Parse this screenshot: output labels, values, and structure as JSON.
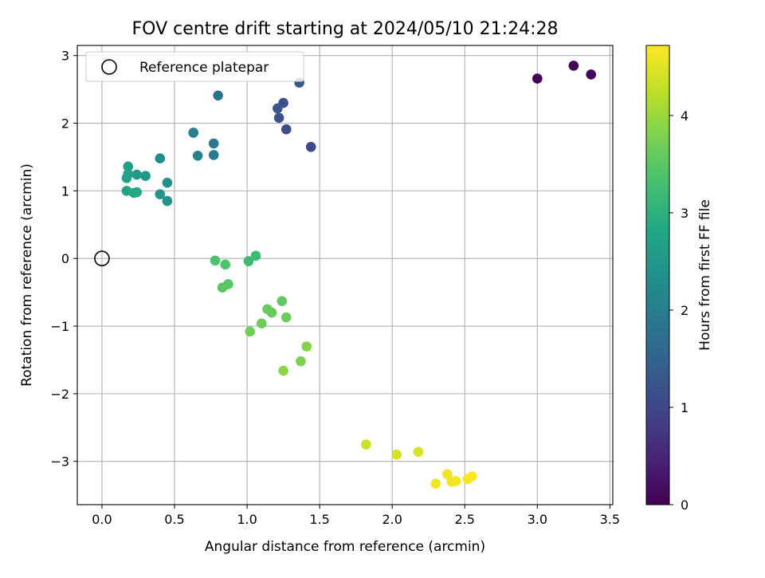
{
  "chart_data": {
    "type": "scatter",
    "title": "FOV centre drift starting at 2024/05/10 21:24:28",
    "xlabel": "Angular distance from reference (arcmin)",
    "ylabel": "Rotation from reference (arcmin)",
    "xlim": [
      -0.17,
      3.52
    ],
    "ylim": [
      -3.64,
      3.15
    ],
    "xticks": [
      0.0,
      0.5,
      1.0,
      1.5,
      2.0,
      2.5,
      3.0,
      3.5
    ],
    "xtick_labels": [
      "0.0",
      "0.5",
      "1.0",
      "1.5",
      "2.0",
      "2.5",
      "3.0",
      "3.5"
    ],
    "yticks": [
      -3,
      -2,
      -1,
      0,
      1,
      2,
      3
    ],
    "ytick_labels": [
      "−3",
      "−2",
      "−1",
      "0",
      "1",
      "2",
      "3"
    ],
    "grid": true,
    "legend": {
      "placement": "upper-left",
      "entries": [
        {
          "label": "Reference platepar",
          "marker": "open-circle"
        }
      ]
    },
    "reference_point": {
      "x": 0.0,
      "y": 0.0
    },
    "colorbar": {
      "label": "Hours from first FF file",
      "colormap": "viridis",
      "range": [
        0,
        4.72
      ],
      "ticks": [
        0,
        1,
        2,
        3,
        4
      ],
      "tick_labels": [
        "0",
        "1",
        "2",
        "3",
        "4"
      ]
    },
    "points": [
      {
        "x": 3.0,
        "y": 2.66,
        "hours": 0.0
      },
      {
        "x": 3.25,
        "y": 2.85,
        "hours": 0.05
      },
      {
        "x": 3.37,
        "y": 2.72,
        "hours": 0.1
      },
      {
        "x": 1.44,
        "y": 1.65,
        "hours": 1.05
      },
      {
        "x": 1.27,
        "y": 1.91,
        "hours": 1.1
      },
      {
        "x": 1.25,
        "y": 2.3,
        "hours": 1.15
      },
      {
        "x": 1.22,
        "y": 2.08,
        "hours": 1.2
      },
      {
        "x": 1.21,
        "y": 2.22,
        "hours": 1.25
      },
      {
        "x": 1.36,
        "y": 2.6,
        "hours": 1.3
      },
      {
        "x": 0.8,
        "y": 2.41,
        "hours": 1.8
      },
      {
        "x": 0.77,
        "y": 1.7,
        "hours": 1.9
      },
      {
        "x": 0.77,
        "y": 1.53,
        "hours": 1.95
      },
      {
        "x": 0.63,
        "y": 1.86,
        "hours": 2.0
      },
      {
        "x": 0.66,
        "y": 1.52,
        "hours": 2.05
      },
      {
        "x": 0.63,
        "y": 1.86,
        "hours": 2.1
      },
      {
        "x": 0.4,
        "y": 1.48,
        "hours": 2.3
      },
      {
        "x": 0.45,
        "y": 1.12,
        "hours": 2.35
      },
      {
        "x": 0.45,
        "y": 0.85,
        "hours": 2.4
      },
      {
        "x": 0.4,
        "y": 0.95,
        "hours": 2.45
      },
      {
        "x": 0.3,
        "y": 1.22,
        "hours": 2.5
      },
      {
        "x": 0.24,
        "y": 1.24,
        "hours": 2.55
      },
      {
        "x": 0.18,
        "y": 1.36,
        "hours": 2.6
      },
      {
        "x": 0.17,
        "y": 1.19,
        "hours": 2.65
      },
      {
        "x": 0.18,
        "y": 1.25,
        "hours": 2.7
      },
      {
        "x": 0.17,
        "y": 1.0,
        "hours": 2.75
      },
      {
        "x": 0.22,
        "y": 0.97,
        "hours": 2.8
      },
      {
        "x": 0.24,
        "y": 0.98,
        "hours": 2.85
      },
      {
        "x": 1.06,
        "y": 0.04,
        "hours": 3.2
      },
      {
        "x": 1.01,
        "y": -0.04,
        "hours": 3.25
      },
      {
        "x": 0.78,
        "y": -0.03,
        "hours": 3.35
      },
      {
        "x": 0.85,
        "y": -0.09,
        "hours": 3.4
      },
      {
        "x": 0.87,
        "y": -0.38,
        "hours": 3.45
      },
      {
        "x": 0.83,
        "y": -0.43,
        "hours": 3.5
      },
      {
        "x": 1.24,
        "y": -0.63,
        "hours": 3.55
      },
      {
        "x": 1.14,
        "y": -0.75,
        "hours": 3.6
      },
      {
        "x": 1.17,
        "y": -0.8,
        "hours": 3.62
      },
      {
        "x": 1.27,
        "y": -0.87,
        "hours": 3.65
      },
      {
        "x": 1.1,
        "y": -0.96,
        "hours": 3.68
      },
      {
        "x": 1.02,
        "y": -1.08,
        "hours": 3.7
      },
      {
        "x": 1.37,
        "y": -1.52,
        "hours": 3.8
      },
      {
        "x": 1.41,
        "y": -1.3,
        "hours": 3.85
      },
      {
        "x": 1.25,
        "y": -1.66,
        "hours": 3.9
      },
      {
        "x": 1.82,
        "y": -2.75,
        "hours": 4.35
      },
      {
        "x": 2.03,
        "y": -2.9,
        "hours": 4.4
      },
      {
        "x": 2.18,
        "y": -2.86,
        "hours": 4.45
      },
      {
        "x": 2.38,
        "y": -3.19,
        "hours": 4.6
      },
      {
        "x": 2.41,
        "y": -3.3,
        "hours": 4.62
      },
      {
        "x": 2.44,
        "y": -3.29,
        "hours": 4.64
      },
      {
        "x": 2.3,
        "y": -3.33,
        "hours": 4.66
      },
      {
        "x": 2.52,
        "y": -3.26,
        "hours": 4.68
      },
      {
        "x": 2.55,
        "y": -3.22,
        "hours": 4.7
      }
    ]
  }
}
